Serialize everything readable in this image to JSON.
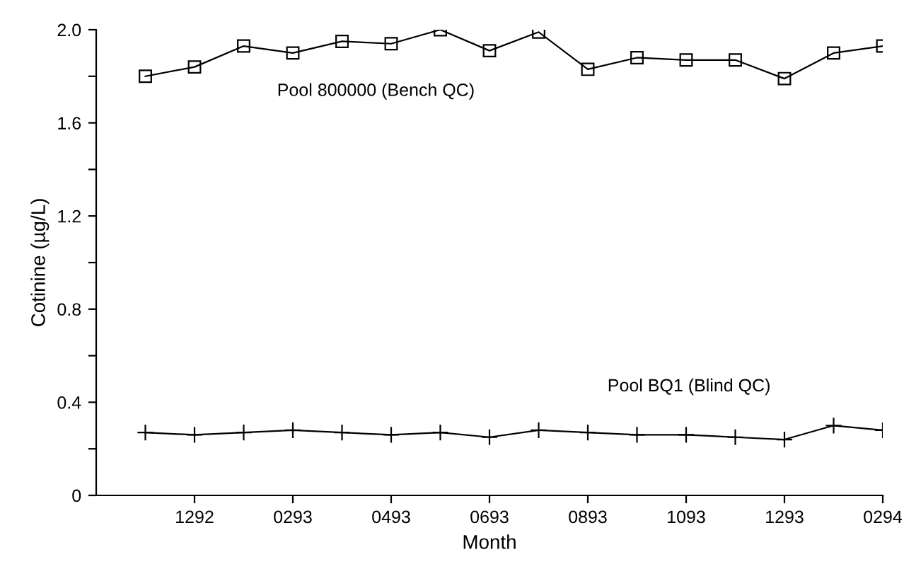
{
  "chart_data": {
    "type": "line",
    "xlabel": "Month",
    "ylabel": "Cotinine (µg/L)",
    "categories": [
      null,
      "1292",
      null,
      "0293",
      null,
      "0493",
      null,
      "0693",
      null,
      "0893",
      null,
      "1093",
      null,
      "1293",
      null,
      "0294"
    ],
    "ylim": [
      0,
      2.0
    ],
    "yticks": [
      0,
      {
        "value": 0.2,
        "label": null
      },
      0.4,
      {
        "value": 0.6,
        "label": null
      },
      0.8,
      {
        "value": 1.0,
        "label": null
      },
      1.2,
      {
        "value": 1.4,
        "label": null
      },
      1.6,
      {
        "value": 1.8,
        "label": null
      },
      {
        "value": 2.0,
        "label": "2.0"
      }
    ],
    "grid": false,
    "legend": false,
    "series": [
      {
        "name": "Pool 800000 (Bench QC)",
        "color": "#000000",
        "marker": "square",
        "values": [
          1.8,
          1.84,
          1.93,
          1.9,
          1.95,
          1.94,
          2.0,
          1.91,
          1.99,
          1.83,
          1.88,
          1.87,
          1.87,
          1.79,
          1.9,
          1.93
        ]
      },
      {
        "name": "Pool BQ1 (Blind QC)",
        "color": "#000000",
        "marker": "cross",
        "values": [
          0.27,
          0.26,
          0.27,
          0.28,
          0.27,
          0.26,
          0.27,
          0.25,
          0.28,
          0.27,
          0.26,
          0.26,
          0.25,
          0.24,
          0.3,
          0.28
        ]
      }
    ]
  }
}
